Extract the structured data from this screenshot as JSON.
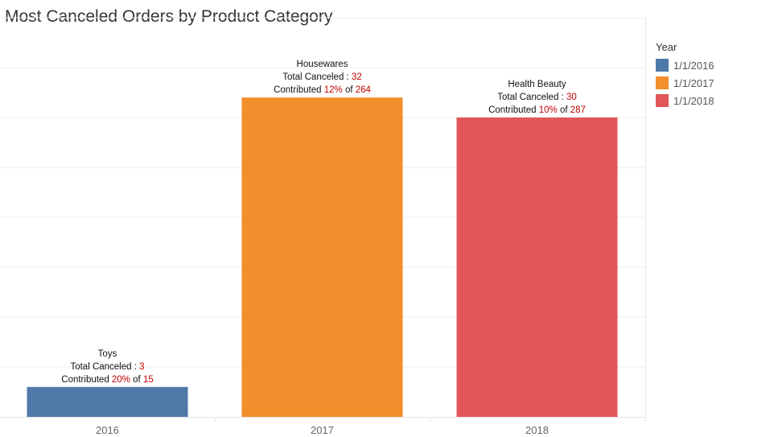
{
  "chart_data": {
    "type": "bar",
    "title": "Most Canceled Orders by Product Category",
    "categories": [
      "2016",
      "2017",
      "2018"
    ],
    "values": [
      3,
      32,
      30
    ],
    "ylim": [
      0,
      40
    ],
    "grid": true,
    "xlabel": "",
    "ylabel": "",
    "legend": {
      "title": "Year",
      "placement": "right",
      "entries": [
        "1/1/2016",
        "1/1/2017",
        "1/1/2018"
      ]
    },
    "colors": [
      "#4e79a7",
      "#f28e2b",
      "#e15759"
    ],
    "highlight_color": "#c00000",
    "bar_labels": [
      {
        "category_name": "Toys",
        "total_prefix": "Total Canceled : ",
        "total": "3",
        "contrib_prefix": "Contributed ",
        "percent": "20%",
        "of_text": " of ",
        "of_total": "15"
      },
      {
        "category_name": "Housewares",
        "total_prefix": "Total Canceled : ",
        "total": "32",
        "contrib_prefix": "Contributed ",
        "percent": "12%",
        "of_text": " of ",
        "of_total": "264"
      },
      {
        "category_name": "Health Beauty",
        "total_prefix": "Total Canceled : ",
        "total": "30",
        "contrib_prefix": "Contributed ",
        "percent": "10%",
        "of_text": " of ",
        "of_total": "287"
      }
    ]
  }
}
